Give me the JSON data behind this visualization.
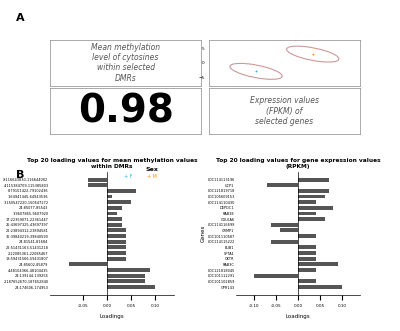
{
  "panel_A_label": "A",
  "panel_B_label": "B",
  "correlation": "0.98",
  "sex_legend_F_color": "#00BFFF",
  "sex_legend_M_color": "#FF8C00",
  "text_methylation": "Mean methylation\nlevel of cytosines\nwithin selected\nDMRs",
  "text_expression": "Expression values\n(FPKM) of\nselected genes",
  "sex_label": "Sex",
  "dmr_title": "Top 20 loading values for mean methylation values\nwithin DMRs",
  "gene_title": "Top 20 loading values for gene expression values\n(RPKM)",
  "dmr_ylabel": "DMRs",
  "gene_ylabel": "Genes",
  "xlabel": "Loadings",
  "dmr_labels": [
    "X:116643830-116644002",
    "4:115384709-115385803",
    "8:79101422-79102436",
    "1:64941445-64943536",
    "3:150547220-150547272",
    "24:85077-85543",
    "1:9607865-9607920",
    "17:22359071-22361447",
    "25:43697325-43697397",
    "22:23894312-23894581",
    "16:39840219-39840590",
    "24:81541-81684",
    "22:51431163-51431218",
    "2:22085361-22085467",
    "13:59431566-59431807",
    "24:85602-85879",
    "4:48104366-48104435",
    "24:139144-139255",
    "2:187652670-187652840",
    "24:174606-174953"
  ],
  "dmr_values": [
    -0.04,
    -0.04,
    0.06,
    0.01,
    0.05,
    0.03,
    0.02,
    0.03,
    0.03,
    0.04,
    0.04,
    0.04,
    0.04,
    0.04,
    0.04,
    -0.08,
    0.09,
    0.08,
    0.08,
    0.1
  ],
  "gene_labels": [
    "LOC114113196",
    "UCP1",
    "LOC121819718",
    "LOC105609153",
    "LOC114110430",
    "DEPDC1",
    "RAB38",
    "COL6A6",
    "LOC114116699",
    "CRMP1",
    "LOC101110587",
    "LOC114115222",
    "BUB1",
    "SPTA1",
    "OXTR",
    "RAB3C",
    "LOC121818045",
    "LOC101112291",
    "LOC101102859",
    "GPR143"
  ],
  "gene_values": [
    0.07,
    -0.07,
    0.07,
    0.06,
    0.04,
    0.08,
    0.04,
    0.06,
    -0.06,
    -0.04,
    0.04,
    -0.06,
    0.04,
    0.04,
    0.04,
    0.09,
    0.04,
    -0.1,
    0.04,
    0.1
  ],
  "bar_color": "#555555",
  "background_color": "#FFFFFF"
}
